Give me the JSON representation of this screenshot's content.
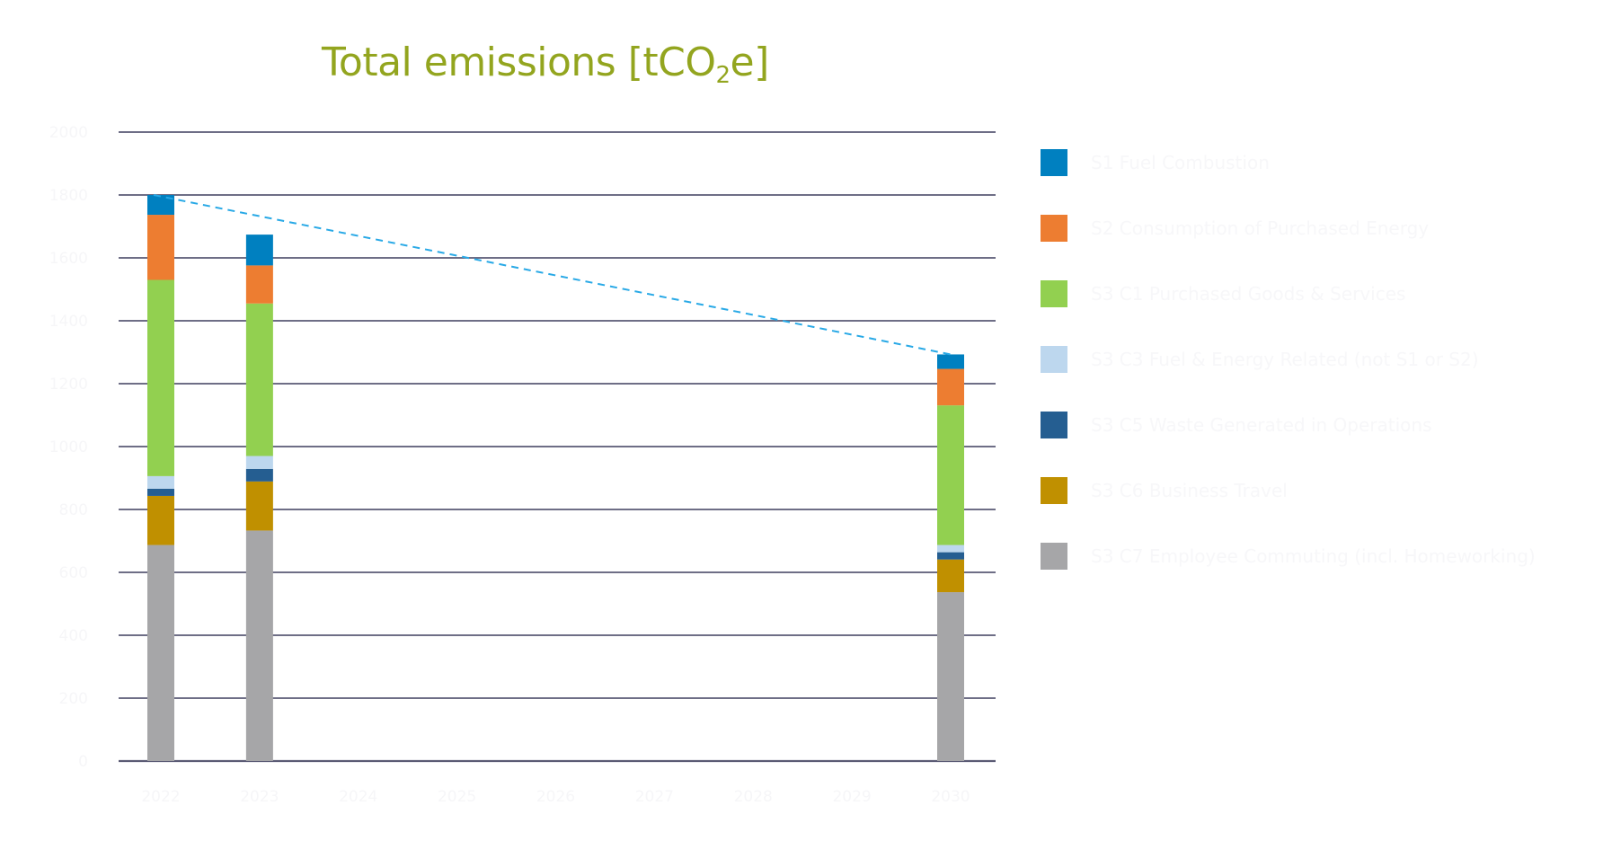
{
  "chart_data": {
    "type": "bar",
    "stacked": true,
    "title": "Total emissions [tCO2e]",
    "title_parts": {
      "pre": "Total emissions [tCO",
      "sub": "2",
      "post": "e]"
    },
    "xlabel": "",
    "ylabel": "",
    "ylim": [
      0,
      2000
    ],
    "yticks": [
      0,
      200,
      400,
      600,
      800,
      1000,
      1200,
      1400,
      1600,
      1800,
      2000
    ],
    "grid": true,
    "legend_position": "right",
    "categories": [
      "2022",
      "2023",
      "2024",
      "2025",
      "2026",
      "2027",
      "2028",
      "2029",
      "2030"
    ],
    "series": [
      {
        "name": "S3 C7 Employee Commuting (incl. Homeworking)",
        "color": "#A6A6A8",
        "values": [
          687,
          733,
          null,
          null,
          null,
          null,
          null,
          null,
          537
        ]
      },
      {
        "name": "S3 C6 Business Travel",
        "color": "#C09000",
        "values": [
          156,
          156,
          null,
          null,
          null,
          null,
          null,
          null,
          104
        ]
      },
      {
        "name": "S3 C5 Waste Generated in Operations",
        "color": "#255E91",
        "values": [
          23,
          40,
          null,
          null,
          null,
          null,
          null,
          null,
          23
        ]
      },
      {
        "name": "S3 C3 Fuel & Energy Related (not S1 or S2)",
        "color": "#BDD7EE",
        "values": [
          40,
          41,
          null,
          null,
          null,
          null,
          null,
          null,
          23
        ]
      },
      {
        "name": "S3 C1 Purchased Goods & Services",
        "color": "#92D050",
        "values": [
          624,
          485,
          null,
          null,
          null,
          null,
          null,
          null,
          444
        ]
      },
      {
        "name": "S2 Consumption of Purchased Energy",
        "color": "#ED7D31",
        "values": [
          207,
          121,
          null,
          null,
          null,
          null,
          null,
          null,
          116
        ]
      },
      {
        "name": "S1 Fuel Combustion",
        "color": "#0080C0",
        "values": [
          63,
          98,
          null,
          null,
          null,
          null,
          null,
          null,
          46
        ]
      }
    ],
    "trend_line": {
      "style": "dashed",
      "color": "#29A9E6",
      "from": {
        "x": "2022",
        "y": 1800
      },
      "to": {
        "x": "2030",
        "y": 1293
      }
    },
    "legend_order": [
      "S1 Fuel Combustion",
      "S2 Consumption of Purchased Energy",
      "S3 C1 Purchased Goods & Services",
      "S3 C3 Fuel & Energy Related (not S1 or S2)",
      "S3 C5 Waste Generated in Operations",
      "S3 C6 Business Travel",
      "S3 C7 Employee Commuting (incl. Homeworking)"
    ]
  }
}
